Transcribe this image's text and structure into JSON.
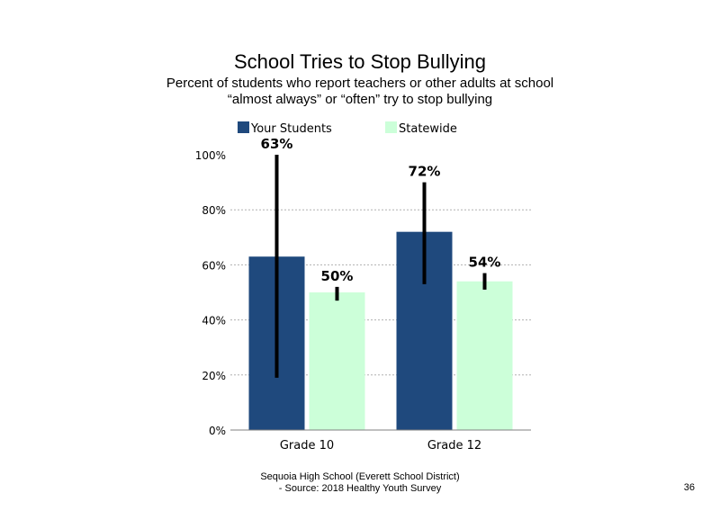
{
  "title": "School Tries to Stop Bullying",
  "subtitle_line1": "Percent of students who report teachers or other adults at school",
  "subtitle_line2": "“almost always” or “often” try to stop bullying",
  "footer_line1": "Sequoia High School (Everett School District)",
  "footer_line2": "- Source: 2018 Healthy Youth Survey",
  "page_number": "36",
  "chart_data": {
    "type": "bar",
    "title": "School Tries to Stop Bullying",
    "categories": [
      "Grade 10",
      "Grade 12"
    ],
    "series": [
      {
        "name": "Your Students",
        "color": "#1f497d",
        "values": [
          63,
          72
        ],
        "labels": [
          "63%",
          "72%"
        ],
        "error_low": [
          19,
          53
        ],
        "error_high": [
          100,
          90
        ]
      },
      {
        "name": "Statewide",
        "color": "#ccffd9",
        "values": [
          50,
          54
        ],
        "labels": [
          "50%",
          "54%"
        ],
        "error_low": [
          47,
          51
        ],
        "error_high": [
          52,
          57
        ]
      }
    ],
    "y_ticks": [
      "0%",
      "20%",
      "40%",
      "60%",
      "80%",
      "100%"
    ],
    "ylim": [
      0,
      100
    ],
    "grid": "dashed horizontal",
    "legend_position": "top"
  }
}
